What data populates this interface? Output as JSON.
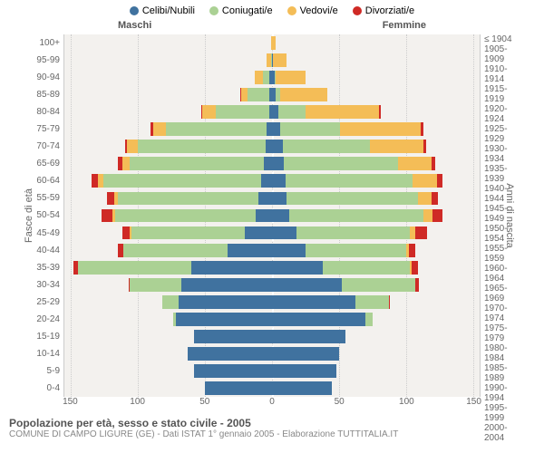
{
  "legend": [
    {
      "label": "Celibi/Nubili",
      "color": "#40729f"
    },
    {
      "label": "Coniugati/e",
      "color": "#abd194"
    },
    {
      "label": "Vedovi/e",
      "color": "#f4bd57"
    },
    {
      "label": "Divorziati/e",
      "color": "#cf2a26"
    }
  ],
  "headers": {
    "male": "Maschi",
    "female": "Femmine"
  },
  "axis_left": "Fasce di età",
  "axis_right": "Anni di nascita",
  "age_labels": [
    "100+",
    "95-99",
    "90-94",
    "85-89",
    "80-84",
    "75-79",
    "70-74",
    "65-69",
    "60-64",
    "55-59",
    "50-54",
    "45-49",
    "40-44",
    "35-39",
    "30-34",
    "25-29",
    "20-24",
    "15-19",
    "10-14",
    "5-9",
    "0-4"
  ],
  "birth_labels": [
    "≤ 1904",
    "1905-1909",
    "1910-1914",
    "1915-1919",
    "1920-1924",
    "1925-1929",
    "1930-1934",
    "1935-1939",
    "1940-1944",
    "1945-1949",
    "1950-1954",
    "1955-1959",
    "1960-1964",
    "1965-1969",
    "1970-1974",
    "1975-1979",
    "1980-1984",
    "1985-1989",
    "1990-1994",
    "1995-1999",
    "2000-2004"
  ],
  "xticks": [
    -150,
    -100,
    -50,
    0,
    50,
    100,
    150
  ],
  "xmax": 155,
  "colors": {
    "single": "#40729f",
    "married": "#abd194",
    "widowed": "#f4bd57",
    "divorced": "#cf2a26"
  },
  "plot_bg": "#f3f1ee",
  "grid_color": "#cccccc",
  "rows": [
    {
      "m": {
        "s": 0,
        "c": 0,
        "w": 1,
        "d": 0
      },
      "f": {
        "s": 0,
        "c": 0,
        "w": 3,
        "d": 0
      }
    },
    {
      "m": {
        "s": 0,
        "c": 1,
        "w": 3,
        "d": 0
      },
      "f": {
        "s": 1,
        "c": 0,
        "w": 10,
        "d": 0
      }
    },
    {
      "m": {
        "s": 2,
        "c": 5,
        "w": 6,
        "d": 0
      },
      "f": {
        "s": 2,
        "c": 1,
        "w": 22,
        "d": 0
      }
    },
    {
      "m": {
        "s": 2,
        "c": 16,
        "w": 5,
        "d": 1
      },
      "f": {
        "s": 3,
        "c": 3,
        "w": 35,
        "d": 0
      }
    },
    {
      "m": {
        "s": 2,
        "c": 40,
        "w": 10,
        "d": 1
      },
      "f": {
        "s": 5,
        "c": 20,
        "w": 55,
        "d": 1
      }
    },
    {
      "m": {
        "s": 4,
        "c": 75,
        "w": 10,
        "d": 2
      },
      "f": {
        "s": 6,
        "c": 45,
        "w": 60,
        "d": 2
      }
    },
    {
      "m": {
        "s": 5,
        "c": 95,
        "w": 8,
        "d": 2
      },
      "f": {
        "s": 8,
        "c": 65,
        "w": 40,
        "d": 2
      }
    },
    {
      "m": {
        "s": 6,
        "c": 100,
        "w": 6,
        "d": 3
      },
      "f": {
        "s": 9,
        "c": 85,
        "w": 25,
        "d": 3
      }
    },
    {
      "m": {
        "s": 8,
        "c": 118,
        "w": 4,
        "d": 5
      },
      "f": {
        "s": 10,
        "c": 95,
        "w": 18,
        "d": 4
      }
    },
    {
      "m": {
        "s": 10,
        "c": 105,
        "w": 3,
        "d": 5
      },
      "f": {
        "s": 11,
        "c": 98,
        "w": 10,
        "d": 5
      }
    },
    {
      "m": {
        "s": 12,
        "c": 105,
        "w": 2,
        "d": 8
      },
      "f": {
        "s": 13,
        "c": 100,
        "w": 7,
        "d": 7
      }
    },
    {
      "m": {
        "s": 20,
        "c": 85,
        "w": 1,
        "d": 6
      },
      "f": {
        "s": 18,
        "c": 85,
        "w": 4,
        "d": 9
      }
    },
    {
      "m": {
        "s": 33,
        "c": 78,
        "w": 0,
        "d": 4
      },
      "f": {
        "s": 25,
        "c": 75,
        "w": 2,
        "d": 5
      }
    },
    {
      "m": {
        "s": 60,
        "c": 85,
        "w": 0,
        "d": 3
      },
      "f": {
        "s": 38,
        "c": 65,
        "w": 1,
        "d": 5
      }
    },
    {
      "m": {
        "s": 68,
        "c": 38,
        "w": 0,
        "d": 1
      },
      "f": {
        "s": 52,
        "c": 55,
        "w": 0,
        "d": 3
      }
    },
    {
      "m": {
        "s": 70,
        "c": 12,
        "w": 0,
        "d": 0
      },
      "f": {
        "s": 62,
        "c": 25,
        "w": 0,
        "d": 1
      }
    },
    {
      "m": {
        "s": 72,
        "c": 2,
        "w": 0,
        "d": 0
      },
      "f": {
        "s": 70,
        "c": 5,
        "w": 0,
        "d": 0
      }
    },
    {
      "m": {
        "s": 58,
        "c": 0,
        "w": 0,
        "d": 0
      },
      "f": {
        "s": 55,
        "c": 0,
        "w": 0,
        "d": 0
      }
    },
    {
      "m": {
        "s": 63,
        "c": 0,
        "w": 0,
        "d": 0
      },
      "f": {
        "s": 50,
        "c": 0,
        "w": 0,
        "d": 0
      }
    },
    {
      "m": {
        "s": 58,
        "c": 0,
        "w": 0,
        "d": 0
      },
      "f": {
        "s": 48,
        "c": 0,
        "w": 0,
        "d": 0
      }
    },
    {
      "m": {
        "s": 50,
        "c": 0,
        "w": 0,
        "d": 0
      },
      "f": {
        "s": 45,
        "c": 0,
        "w": 0,
        "d": 0
      }
    }
  ],
  "title": "Popolazione per età, sesso e stato civile - 2005",
  "subtitle": "COMUNE DI CAMPO LIGURE (GE) - Dati ISTAT 1° gennaio 2005 - Elaborazione TUTTITALIA.IT"
}
